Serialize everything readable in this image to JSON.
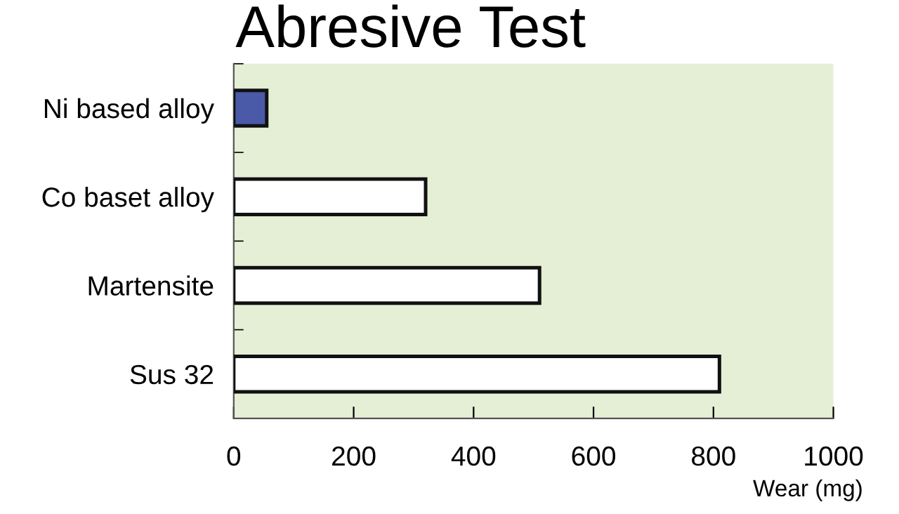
{
  "chart_data": {
    "type": "bar",
    "orientation": "horizontal",
    "title": "Abresive Test",
    "xlabel": "Wear (mg)",
    "categories": [
      "Ni based alloy",
      "Co baset alloy",
      "Martensite",
      "Sus 32"
    ],
    "values": [
      55,
      320,
      510,
      810
    ],
    "colors": [
      "#4a5aa8",
      "#ffffff",
      "#ffffff",
      "#ffffff"
    ],
    "xlim": [
      0,
      1000
    ],
    "xticks": [
      0,
      200,
      400,
      600,
      800,
      1000
    ],
    "grid": false
  }
}
